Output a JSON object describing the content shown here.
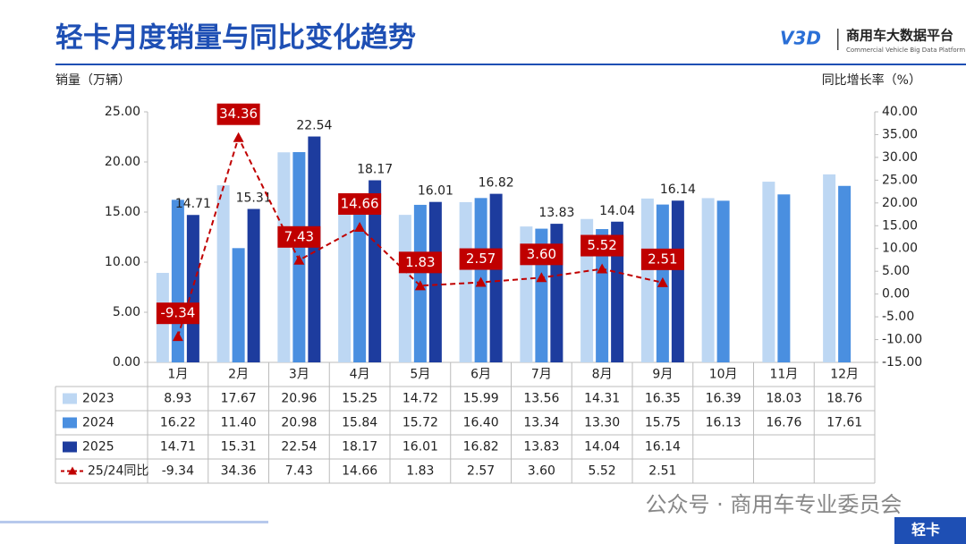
{
  "chart_data": {
    "type": "bar",
    "title": "轻卡月度销量与同比变化趋势",
    "ylabel": "销量（万辆）",
    "y2label": "同比增长率（%）",
    "categories": [
      "1月",
      "2月",
      "3月",
      "4月",
      "5月",
      "6月",
      "7月",
      "8月",
      "9月",
      "10月",
      "11月",
      "12月"
    ],
    "series": [
      {
        "name": "2023",
        "color": "#bdd7f3",
        "values": [
          8.93,
          17.67,
          20.96,
          15.25,
          14.72,
          15.99,
          13.56,
          14.31,
          16.35,
          16.39,
          18.03,
          18.76
        ],
        "value_labels": [
          "8.93",
          "17.67",
          "20.96",
          "15.25",
          "14.72",
          "15.99",
          "13.56",
          "14.31",
          "16.35",
          "16.39",
          "18.03",
          "18.76"
        ]
      },
      {
        "name": "2024",
        "color": "#4a8fe0",
        "values": [
          16.22,
          11.4,
          20.98,
          15.84,
          15.72,
          16.4,
          13.34,
          13.3,
          15.75,
          16.13,
          16.76,
          17.61
        ],
        "value_labels": [
          "16.22",
          "11.40",
          "20.98",
          "15.84",
          "15.72",
          "16.40",
          "13.34",
          "13.30",
          "15.75",
          "16.13",
          "16.76",
          "17.61"
        ]
      },
      {
        "name": "2025",
        "color": "#1d3c9e",
        "values": [
          14.71,
          15.31,
          22.54,
          18.17,
          16.01,
          16.82,
          13.83,
          14.04,
          16.14,
          null,
          null,
          null
        ],
        "value_labels": [
          "14.71",
          "15.31",
          "22.54",
          "18.17",
          "16.01",
          "16.82",
          "13.83",
          "14.04",
          "16.14",
          null,
          null,
          null
        ]
      },
      {
        "name": "25/24同比",
        "type": "line",
        "axis": "y2",
        "color": "#c00000",
        "values": [
          -9.34,
          34.36,
          7.43,
          14.66,
          1.83,
          2.57,
          3.6,
          5.52,
          2.51,
          null,
          null,
          null
        ],
        "value_labels": [
          "-9.34",
          "34.36",
          "7.43",
          "14.66",
          "1.83",
          "2.57",
          "3.60",
          "5.52",
          "2.51",
          null,
          null,
          null
        ]
      }
    ],
    "ylim": [
      0,
      25
    ],
    "yticks": [
      {
        "value": 0,
        "label": "0.00"
      },
      {
        "value": 5,
        "label": "5.00"
      },
      {
        "value": 10,
        "label": "10.00"
      },
      {
        "value": 15,
        "label": "15.00"
      },
      {
        "value": 20,
        "label": "20.00"
      },
      {
        "value": 25,
        "label": "25.00"
      }
    ],
    "y2lim": [
      -15,
      40
    ],
    "y2ticks": [
      {
        "value": -15,
        "label": "-15.00"
      },
      {
        "value": -10,
        "label": "-10.00"
      },
      {
        "value": -5,
        "label": "-5.00"
      },
      {
        "value": 0,
        "label": "0.00"
      },
      {
        "value": 5,
        "label": "5.00"
      },
      {
        "value": 10,
        "label": "10.00"
      },
      {
        "value": 15,
        "label": "15.00"
      },
      {
        "value": 20,
        "label": "20.00"
      },
      {
        "value": 25,
        "label": "25.00"
      },
      {
        "value": 30,
        "label": "30.00"
      },
      {
        "value": 35,
        "label": "35.00"
      },
      {
        "value": 40,
        "label": "40.00"
      }
    ]
  },
  "brand": {
    "logo": "V3D",
    "name": "商用车大数据平台",
    "tagline": "Commercial Vehicle Big Data Platform"
  },
  "footer": {
    "watermark": "公众号 · 商用车专业委员会",
    "tag": "轻卡"
  }
}
